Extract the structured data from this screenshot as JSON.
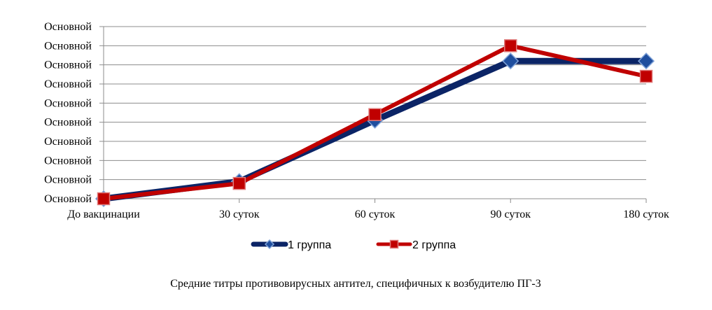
{
  "chart_data": {
    "type": "line",
    "title": "",
    "xlabel": "",
    "ylabel": "",
    "categories": [
      "До вакцинации",
      "30 суток",
      "60 суток",
      "90 суток",
      "180 суток"
    ],
    "y_tick_labels": [
      "Основной",
      "Основной",
      "Основной",
      "Основной",
      "Основной",
      "Основной",
      "Основной",
      "Основной",
      "Основной",
      "Основной"
    ],
    "ylim": [
      0,
      9
    ],
    "grid": true,
    "legend_position": "bottom",
    "series": [
      {
        "name": "1 группа",
        "values": [
          0.0,
          0.9,
          4.1,
          7.2,
          7.2
        ],
        "color": "#0b2466",
        "marker": "diamond"
      },
      {
        "name": "2 группа",
        "values": [
          0.0,
          0.8,
          4.4,
          8.0,
          6.4
        ],
        "color": "#c00000",
        "marker": "square"
      }
    ]
  },
  "caption": "Средние титры противовирусных антител, специфичных к возбудителю ПГ-3"
}
